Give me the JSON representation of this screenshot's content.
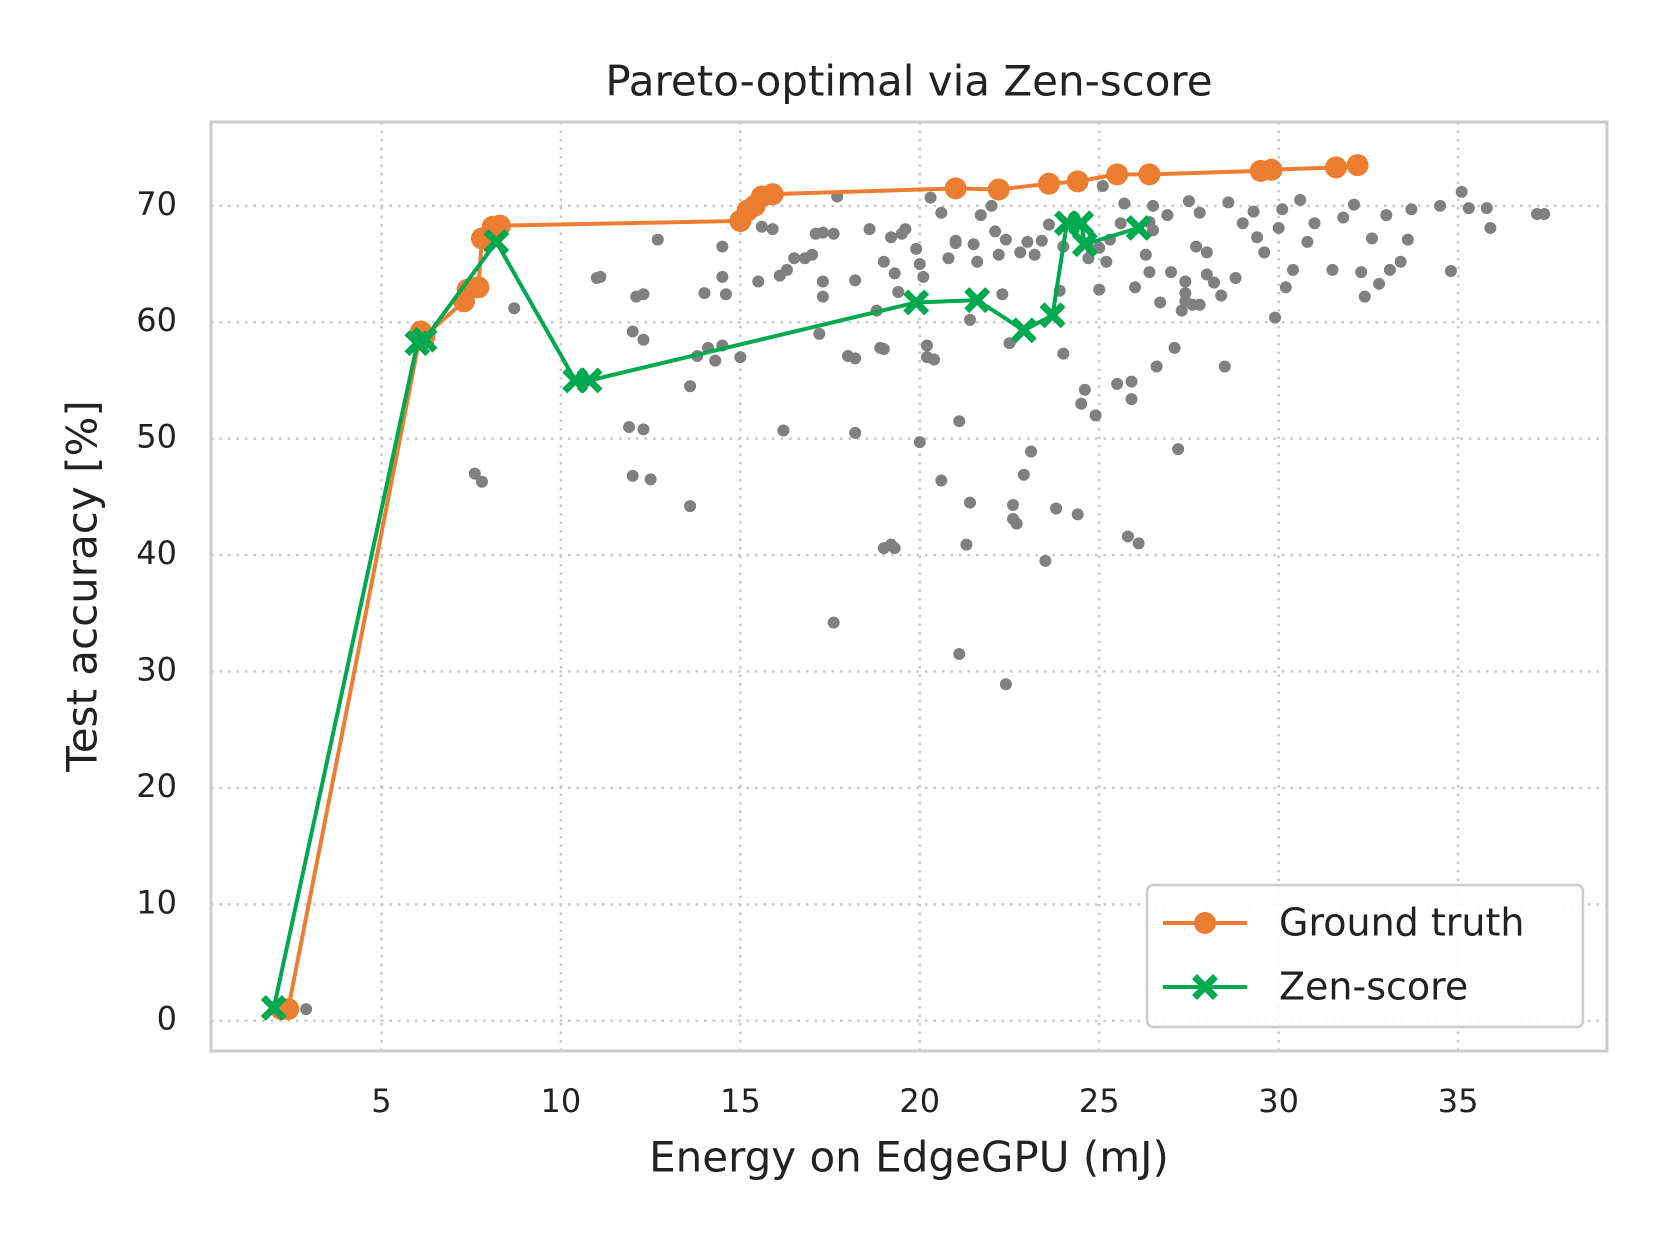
{
  "chart_data": {
    "type": "scatter",
    "title": "Pareto-optimal via Zen-score",
    "xlabel": "Energy on EdgeGPU (mJ)",
    "ylabel": "Test accuracy [%]",
    "xlim": [
      0.25,
      39.15
    ],
    "ylim": [
      -2.6,
      77.2
    ],
    "xticks": [
      5,
      10,
      15,
      20,
      25,
      30,
      35
    ],
    "yticks": [
      0,
      10,
      20,
      30,
      40,
      50,
      60,
      70
    ],
    "grid": true,
    "legend": "lower right",
    "series": [
      {
        "color": "#808080",
        "marker": "dot",
        "line": false,
        "x": [
          2.9,
          6.3,
          7.6,
          7.8,
          8.7,
          11.0,
          11.1,
          12.0,
          12.3,
          12.3,
          12.1,
          11.9,
          12.3,
          12.0,
          12.5,
          12.7,
          13.6,
          13.6,
          13.8,
          14.0,
          14.1,
          14.3,
          14.5,
          14.5,
          14.6,
          14.5,
          15.0,
          15.5,
          15.6,
          15.9,
          16.2,
          16.1,
          16.3,
          16.5,
          16.8,
          17.0,
          17.1,
          17.3,
          17.6,
          17.7,
          17.3,
          17.3,
          17.2,
          17.6,
          18.0,
          18.2,
          18.2,
          18.2,
          18.6,
          18.8,
          18.9,
          19.0,
          19.0,
          19.2,
          19.3,
          19.4,
          19.5,
          19.6,
          19.9,
          20.0,
          19.2,
          19.3,
          19.0,
          20.0,
          20.2,
          20.2,
          20.4,
          20.6,
          20.3,
          20.1,
          20.6,
          20.8,
          21.0,
          21.1,
          21.1,
          21.3,
          21.4,
          21.4,
          21.5,
          21.6,
          21.7,
          22.0,
          22.1,
          22.2,
          22.3,
          22.4,
          22.5,
          22.6,
          22.6,
          22.7,
          22.4,
          22.9,
          23.1,
          23.2,
          23.4,
          23.5,
          23.6,
          23.8,
          23.9,
          24.0,
          24.0,
          24.3,
          24.4,
          24.5,
          24.6,
          24.7,
          24.9,
          25.0,
          25.1,
          25.2,
          25.3,
          25.5,
          25.6,
          25.7,
          25.8,
          25.9,
          25.9,
          26.1,
          26.0,
          26.3,
          26.4,
          26.5,
          26.6,
          26.7,
          26.9,
          27.0,
          27.1,
          27.2,
          27.3,
          27.4,
          27.5,
          27.6,
          27.7,
          27.8,
          28.0,
          28.2,
          28.4,
          28.5,
          28.6,
          28.8,
          29.0,
          29.3,
          29.4,
          29.6,
          29.9,
          30.0,
          30.1,
          30.2,
          30.4,
          30.6,
          30.8,
          31.0,
          31.5,
          31.8,
          32.1,
          32.3,
          32.4,
          32.6,
          32.8,
          33.0,
          33.1,
          33.4,
          33.6,
          33.7,
          34.5,
          34.8,
          35.1,
          35.3,
          35.8,
          35.9,
          37.2,
          37.4,
          21.0,
          23.0,
          24.8,
          26.5,
          28.0,
          27.4,
          27.4,
          26.4,
          22.8,
          25.0,
          27.8
        ],
        "values": [
          1.0,
          58.3,
          47.0,
          46.3,
          61.2,
          63.8,
          63.9,
          59.2,
          58.5,
          62.4,
          62.2,
          51.0,
          50.8,
          46.8,
          46.5,
          67.1,
          44.2,
          54.5,
          57.1,
          62.5,
          57.8,
          56.7,
          58.0,
          63.9,
          62.4,
          66.5,
          57.0,
          63.5,
          68.2,
          68.0,
          50.7,
          64.0,
          64.5,
          65.5,
          65.5,
          65.8,
          67.6,
          67.7,
          67.6,
          70.8,
          63.5,
          62.2,
          59.0,
          34.2,
          57.1,
          56.9,
          50.5,
          63.6,
          68.0,
          61.0,
          57.8,
          57.7,
          65.2,
          67.3,
          64.2,
          62.6,
          67.6,
          68.0,
          66.3,
          65.0,
          40.9,
          40.6,
          40.6,
          49.7,
          58.0,
          57.0,
          56.8,
          69.4,
          70.7,
          63.9,
          46.4,
          65.5,
          67.0,
          51.5,
          31.5,
          40.9,
          44.5,
          60.2,
          66.7,
          65.2,
          69.2,
          70.0,
          67.8,
          65.8,
          62.4,
          67.1,
          58.2,
          44.3,
          43.1,
          42.7,
          28.9,
          46.9,
          48.9,
          65.8,
          67.0,
          39.5,
          68.4,
          44.0,
          62.7,
          57.3,
          66.5,
          69.0,
          43.5,
          53.0,
          54.2,
          65.5,
          52.0,
          62.8,
          71.7,
          65.2,
          67.1,
          54.7,
          68.5,
          70.2,
          41.6,
          53.4,
          54.9,
          41.0,
          63.0,
          65.8,
          68.6,
          70.0,
          56.2,
          61.7,
          69.2,
          64.3,
          57.8,
          49.1,
          61.0,
          63.5,
          70.4,
          61.5,
          66.5,
          69.4,
          64.1,
          63.4,
          62.3,
          56.2,
          70.3,
          63.8,
          68.5,
          69.5,
          67.3,
          66.0,
          60.4,
          68.1,
          69.7,
          63.0,
          64.5,
          70.5,
          66.9,
          68.5,
          64.5,
          69.0,
          70.1,
          64.3,
          62.2,
          67.2,
          63.3,
          69.2,
          64.5,
          65.2,
          67.1,
          69.7,
          70.0,
          64.4,
          71.2,
          69.8,
          69.8,
          68.1,
          69.3,
          69.3,
          66.8,
          66.9,
          66.2,
          67.9,
          66.0,
          62.5,
          61.8,
          64.3,
          66.0,
          66.4,
          61.5
        ]
      },
      {
        "name": "Ground truth",
        "color": "#ed7d31",
        "marker": "circle",
        "line": true,
        "x": [
          2.2,
          2.4,
          6.1,
          6.2,
          7.3,
          7.4,
          7.7,
          7.8,
          8.1,
          8.3,
          15.0,
          15.2,
          15.4,
          15.6,
          15.9,
          21.0,
          22.2,
          23.6,
          24.4,
          25.5,
          26.4,
          29.5,
          29.8,
          31.6,
          32.2
        ],
        "values": [
          1.0,
          1.0,
          59.2,
          58.8,
          61.8,
          62.8,
          63.0,
          67.2,
          68.2,
          68.3,
          68.7,
          69.6,
          70.0,
          70.8,
          71.0,
          71.5,
          71.4,
          71.9,
          72.1,
          72.7,
          72.7,
          73.0,
          73.1,
          73.3,
          73.5
        ]
      },
      {
        "name": "Zen-score",
        "color": "#00a94f",
        "marker": "x",
        "line": true,
        "x": [
          2.0,
          6.0,
          6.2,
          8.2,
          10.4,
          10.8,
          19.9,
          21.6,
          22.9,
          23.7,
          24.1,
          24.5,
          24.6,
          26.1
        ],
        "values": [
          1.1,
          58.2,
          58.5,
          66.9,
          55.0,
          55.0,
          61.7,
          61.9,
          59.3,
          60.6,
          68.5,
          68.5,
          66.7,
          68.1
        ]
      }
    ]
  }
}
